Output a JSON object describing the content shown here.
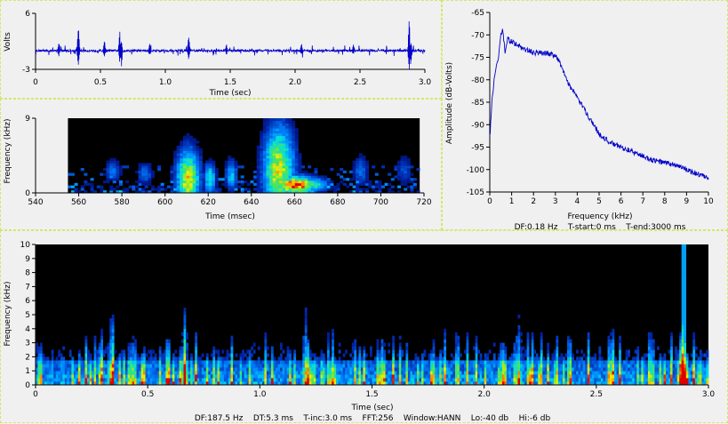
{
  "chart_data": [
    {
      "id": "waveform",
      "type": "line",
      "ylabel": "Volts",
      "xlabel": "Time (sec)",
      "ylim": [
        -3,
        6
      ],
      "yticks": [
        "6",
        "-3"
      ],
      "xlim": [
        0,
        3.0
      ],
      "xticks": [
        "0",
        "0.5",
        "1.0",
        "1.5",
        "2.0",
        "2.5",
        "3.0"
      ],
      "color": "#0000c8",
      "events": [
        {
          "t": 0.33,
          "amp": 4.0
        },
        {
          "t": 0.65,
          "amp": 3.6
        },
        {
          "t": 0.66,
          "amp": -3.0
        },
        {
          "t": 1.18,
          "amp": 2.4
        },
        {
          "t": 2.88,
          "amp": 5.8
        },
        {
          "t": 2.89,
          "amp": -2.8
        },
        {
          "t": 0.18,
          "amp": 1.4
        },
        {
          "t": 0.53,
          "amp": 1.6
        },
        {
          "t": 0.88,
          "amp": 1.2
        },
        {
          "t": 1.47,
          "amp": 1.0
        },
        {
          "t": 2.05,
          "amp": 1.1
        },
        {
          "t": 2.45,
          "amp": 0.9
        }
      ]
    },
    {
      "id": "spectrogram-zoom",
      "type": "heatmap",
      "ylabel": "Frequency (kHz)",
      "xlabel": "Time (msec)",
      "ylim": [
        0,
        9
      ],
      "yticks": [
        "0",
        "9"
      ],
      "xlim": [
        540,
        720
      ],
      "xticks": [
        "540",
        "560",
        "580",
        "600",
        "620",
        "640",
        "660",
        "680",
        "700",
        "720"
      ],
      "data_range": [
        555,
        718
      ],
      "hotspots": [
        {
          "t": 610,
          "f": 1.5,
          "w": 6,
          "h": 4,
          "v": 0.8
        },
        {
          "t": 620,
          "f": 1.6,
          "w": 3,
          "h": 2,
          "v": 0.6
        },
        {
          "t": 630,
          "f": 2.0,
          "w": 3,
          "h": 2,
          "v": 0.5
        },
        {
          "t": 652,
          "f": 2.5,
          "w": 8,
          "h": 6,
          "v": 0.8
        },
        {
          "t": 660,
          "f": 0.8,
          "w": 10,
          "h": 1.2,
          "v": 1.0
        },
        {
          "t": 668,
          "f": 0.9,
          "w": 8,
          "h": 1,
          "v": 0.6
        },
        {
          "t": 575,
          "f": 2.5,
          "w": 4,
          "h": 1.5,
          "v": 0.35
        },
        {
          "t": 590,
          "f": 2.2,
          "w": 4,
          "h": 1.5,
          "v": 0.35
        },
        {
          "t": 690,
          "f": 2.5,
          "w": 4,
          "h": 2,
          "v": 0.35
        },
        {
          "t": 710,
          "f": 2.5,
          "w": 4,
          "h": 2,
          "v": 0.3
        }
      ]
    },
    {
      "id": "amplitude-spectrum",
      "type": "line",
      "ylabel": "Amplitude (dB-Volts)",
      "xlabel": "Frequency (kHz)",
      "ylim": [
        -105,
        -65
      ],
      "yticks": [
        "-65",
        "-70",
        "-75",
        "-80",
        "-85",
        "-90",
        "-95",
        "-100",
        "-105"
      ],
      "xlim": [
        0,
        10
      ],
      "xticks": [
        "0",
        "1",
        "2",
        "3",
        "4",
        "5",
        "6",
        "7",
        "8",
        "9",
        "10"
      ],
      "color": "#0000c8",
      "x": [
        0,
        0.1,
        0.2,
        0.3,
        0.4,
        0.5,
        0.6,
        0.7,
        0.8,
        1.0,
        1.5,
        2.0,
        2.5,
        3.0,
        3.2,
        3.5,
        4.0,
        4.5,
        5.0,
        5.5,
        6.0,
        6.5,
        7.0,
        7.5,
        8.0,
        8.5,
        9.0,
        9.5,
        10.0
      ],
      "y": [
        -93,
        -85,
        -80,
        -77,
        -75,
        -70,
        -69,
        -74,
        -71,
        -71.5,
        -73,
        -74,
        -74,
        -74.5,
        -76,
        -80,
        -84,
        -88,
        -92,
        -94,
        -95,
        -96,
        -97,
        -98,
        -98.5,
        -99,
        -100,
        -101,
        -102
      ],
      "footer": "DF:0.18 Hz    T-start:0 ms    T-end:3000 ms"
    },
    {
      "id": "spectrogram-full",
      "type": "heatmap",
      "ylabel": "Frequency (kHz)",
      "xlabel": "Time (sec)",
      "ylim": [
        0,
        10
      ],
      "yticks": [
        "0",
        "1",
        "2",
        "3",
        "4",
        "5",
        "6",
        "7",
        "8",
        "9",
        "10"
      ],
      "xlim": [
        0,
        3.0
      ],
      "xticks": [
        "0",
        "0.5",
        "1.0",
        "1.5",
        "2.0",
        "2.5",
        "3.0"
      ],
      "hot_times": [
        0.33,
        0.66,
        1.2,
        2.15,
        2.88
      ],
      "footer": "DF:187.5 Hz    DT:5.3 ms    T-inc:3.0 ms    FFT:256    Window:HANN    Lo:-40 db    Hi:-6 db"
    }
  ]
}
